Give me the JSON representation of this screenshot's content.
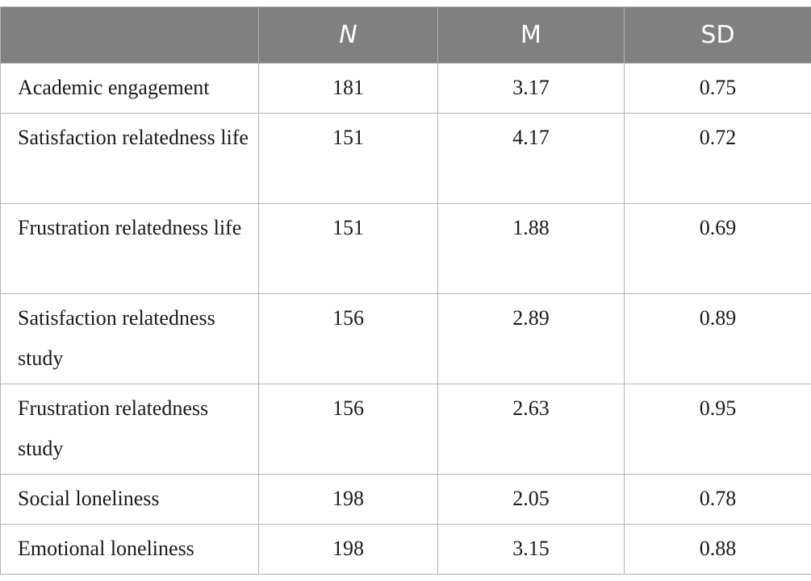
{
  "table": {
    "headers": [
      "",
      "N",
      "M",
      "SD"
    ],
    "rows": [
      {
        "label": "Academic engagement",
        "n": "181",
        "m": "3.17",
        "sd": "0.75"
      },
      {
        "label": "Satisfaction relatedness life",
        "n": "151",
        "m": "4.17",
        "sd": "0.72"
      },
      {
        "label": "Frustration relatedness life",
        "n": "151",
        "m": "1.88",
        "sd": "0.69"
      },
      {
        "label": "Satisfaction relatedness study",
        "n": "156",
        "m": "2.89",
        "sd": "0.89"
      },
      {
        "label": "Frustration relatedness study",
        "n": "156",
        "m": "2.63",
        "sd": "0.95"
      },
      {
        "label": "Social loneliness",
        "n": "198",
        "m": "2.05",
        "sd": "0.78"
      },
      {
        "label": "Emotional loneliness",
        "n": "198",
        "m": "3.15",
        "sd": "0.88"
      }
    ]
  },
  "colors": {
    "header_background": "#808080",
    "header_text": "#ffffff",
    "grid_lines": "#b3b3b3",
    "body_text": "#1a1a1a"
  }
}
